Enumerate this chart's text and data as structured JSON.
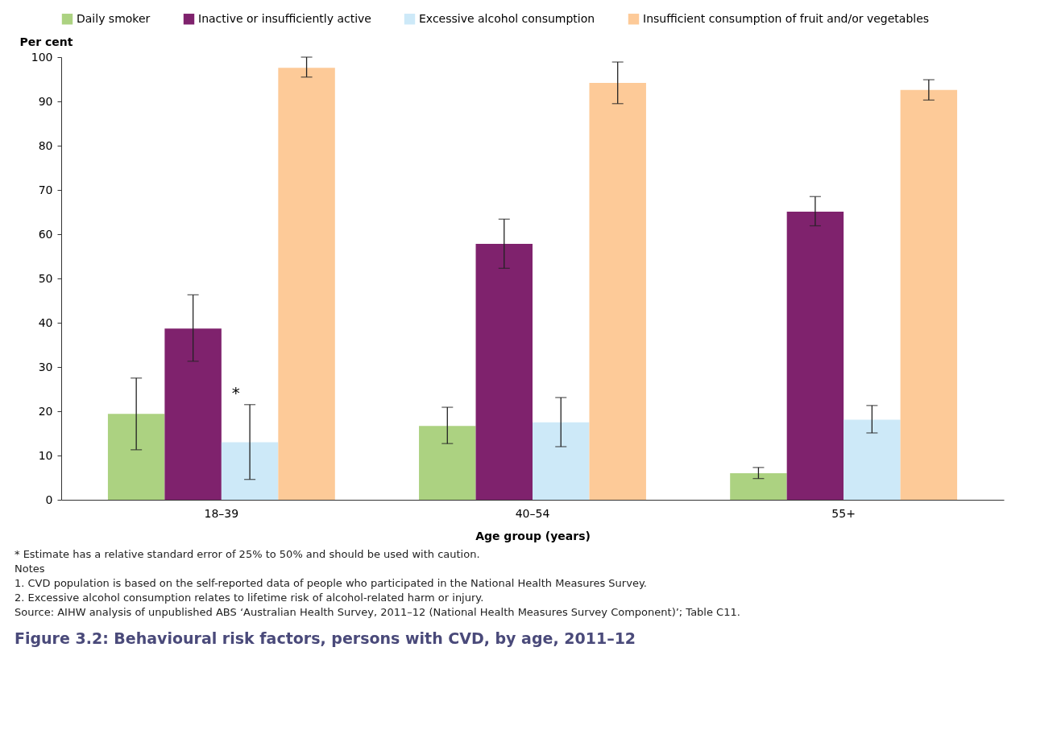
{
  "chart_data": {
    "type": "bar",
    "title": "Figure 3.2: Behavioural risk factors, persons with CVD, by age, 2011–12",
    "xlabel": "Age group (years)",
    "ylabel": "Per cent",
    "categories": [
      "18–39",
      "40–54",
      "55+"
    ],
    "series": [
      {
        "name": "Daily smoker",
        "color": "#acd281",
        "values": [
          19.4,
          16.7,
          6.0
        ],
        "errors": [
          [
            11.3,
            27.5
          ],
          [
            12.7,
            20.9
          ],
          [
            4.8,
            7.3
          ]
        ]
      },
      {
        "name": "Inactive or insufficiently active",
        "color": "#7f226d",
        "values": [
          38.7,
          57.8,
          65.1
        ],
        "errors": [
          [
            31.3,
            46.3
          ],
          [
            52.3,
            63.4
          ],
          [
            61.9,
            68.5
          ]
        ]
      },
      {
        "name": "Excessive alcohol consumption",
        "color": "#cde9f8",
        "values": [
          13.0,
          17.5,
          18.1
        ],
        "errors": [
          [
            4.6,
            21.5
          ],
          [
            12.0,
            23.1
          ],
          [
            15.1,
            21.3
          ]
        ]
      },
      {
        "name": "Insufficient consumption of fruit and/or vegetables",
        "color": "#fdca98",
        "values": [
          97.6,
          94.2,
          92.6
        ],
        "errors": [
          [
            95.5,
            100
          ],
          [
            89.5,
            98.9
          ],
          [
            90.3,
            94.9
          ]
        ]
      }
    ],
    "ylim": [
      0,
      100
    ],
    "yticks": [
      0,
      10,
      20,
      30,
      40,
      50,
      60,
      70,
      80,
      90,
      100
    ],
    "grid": false,
    "legend": "top",
    "annotations": [
      {
        "text": "*",
        "x": "18–39",
        "y": 24
      },
      "* Estimate has a relative standard error of 25% to 50% and should be used with caution.",
      "Notes",
      "1. CVD population is based on the self-reported data of people who participated in the National Health Measures Survey.",
      "2. Excessive alcohol consumption relates to lifetime risk of alcohol-related harm or injury.",
      "Source: AIHW analysis of unpublished ABS ‘Australian Health Survey, 2011–12 (National Health Measures Survey Component)’; Table C11."
    ]
  }
}
